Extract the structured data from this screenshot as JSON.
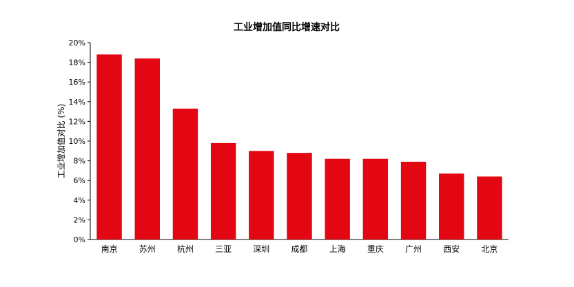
{
  "chart_data": {
    "type": "bar",
    "title": "工业增加值同比增速对比",
    "xlabel": "",
    "ylabel": "工业增加值对比 (%)",
    "categories": [
      "南京",
      "苏州",
      "杭州",
      "三亚",
      "深圳",
      "成都",
      "上海",
      "重庆",
      "广州",
      "西安",
      "北京"
    ],
    "values": [
      18.8,
      18.4,
      13.3,
      9.8,
      9.0,
      8.8,
      8.2,
      8.2,
      7.9,
      6.7,
      6.4
    ],
    "ylim": [
      0,
      20
    ],
    "yticks": [
      "0%",
      "2%",
      "4%",
      "6%",
      "8%",
      "10%",
      "12%",
      "14%",
      "16%",
      "18%",
      "20%"
    ],
    "grid": false,
    "legend": "none",
    "bar_color": "#E30613"
  }
}
